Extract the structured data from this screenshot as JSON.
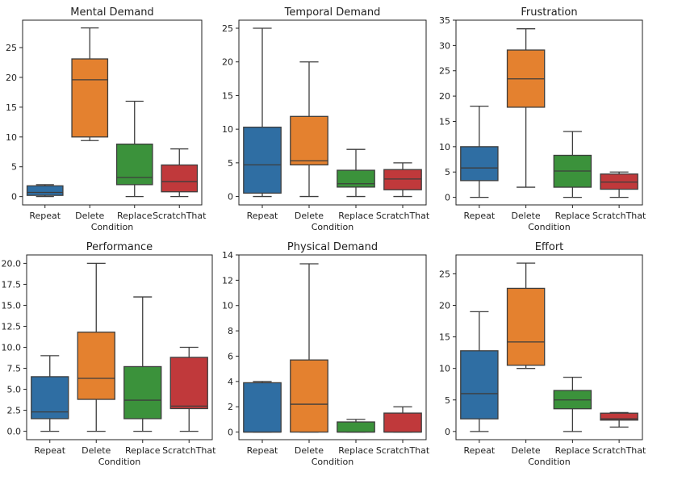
{
  "chart_data": [
    {
      "type": "box",
      "title": "Mental Demand",
      "xlabel": "Condition",
      "ylabel": "",
      "ylim": [
        -1.4,
        29.6
      ],
      "yticks": [
        0,
        5,
        10,
        15,
        20,
        25
      ],
      "categories": [
        "Repeat",
        "Delete",
        "Replace",
        "ScratchThat"
      ],
      "boxes": [
        {
          "whislo": 0,
          "q1": 0.2,
          "med": 0.7,
          "q3": 1.8,
          "whishi": 2.0,
          "color": "#2f6ea3"
        },
        {
          "whislo": 9.4,
          "q1": 10.0,
          "med": 19.6,
          "q3": 23.1,
          "whishi": 28.3,
          "color": "#e4812f"
        },
        {
          "whislo": 0,
          "q1": 2.0,
          "med": 3.2,
          "q3": 8.8,
          "whishi": 16.0,
          "color": "#3b923b"
        },
        {
          "whislo": 0,
          "q1": 0.8,
          "med": 2.5,
          "q3": 5.3,
          "whishi": 8.0,
          "color": "#c0393b"
        }
      ]
    },
    {
      "type": "box",
      "title": "Temporal Demand",
      "xlabel": "Condition",
      "ylabel": "",
      "ylim": [
        -1.25,
        26.2
      ],
      "yticks": [
        0,
        5,
        10,
        15,
        20,
        25
      ],
      "categories": [
        "Repeat",
        "Delete",
        "Replace",
        "ScratchThat"
      ],
      "boxes": [
        {
          "whislo": 0,
          "q1": 0.5,
          "med": 4.7,
          "q3": 10.3,
          "whishi": 25.0,
          "color": "#2f6ea3"
        },
        {
          "whislo": 0,
          "q1": 4.7,
          "med": 5.3,
          "q3": 11.9,
          "whishi": 20.0,
          "color": "#e4812f"
        },
        {
          "whislo": 0,
          "q1": 1.4,
          "med": 1.9,
          "q3": 3.9,
          "whishi": 7.0,
          "color": "#3b923b"
        },
        {
          "whislo": 0,
          "q1": 1.0,
          "med": 2.6,
          "q3": 4.0,
          "whishi": 5.0,
          "color": "#c0393b"
        }
      ]
    },
    {
      "type": "box",
      "title": "Frustration",
      "xlabel": "Condition",
      "ylabel": "",
      "ylim": [
        -1.5,
        35.0
      ],
      "yticks": [
        0,
        5,
        10,
        15,
        20,
        25,
        30,
        35
      ],
      "categories": [
        "Repeat",
        "Delete",
        "Replace",
        "ScratchThat"
      ],
      "boxes": [
        {
          "whislo": 0,
          "q1": 3.3,
          "med": 5.8,
          "q3": 10.0,
          "whishi": 18.0,
          "color": "#2f6ea3"
        },
        {
          "whislo": 2.0,
          "q1": 17.8,
          "med": 23.4,
          "q3": 29.1,
          "whishi": 33.3,
          "color": "#e4812f"
        },
        {
          "whislo": 0,
          "q1": 2.0,
          "med": 5.2,
          "q3": 8.3,
          "whishi": 13.0,
          "color": "#3b923b"
        },
        {
          "whislo": 0,
          "q1": 1.6,
          "med": 3.0,
          "q3": 4.6,
          "whishi": 5.0,
          "color": "#c0393b"
        }
      ]
    },
    {
      "type": "box",
      "title": "Performance",
      "xlabel": "Condition",
      "ylabel": "",
      "ylim": [
        -1.0,
        21.0
      ],
      "yticks": [
        0.0,
        2.5,
        5.0,
        7.5,
        10.0,
        12.5,
        15.0,
        17.5,
        20.0
      ],
      "ytick_labels": [
        "0.0",
        "2.5",
        "5.0",
        "7.5",
        "10.0",
        "12.5",
        "15.0",
        "17.5",
        "20.0"
      ],
      "categories": [
        "Repeat",
        "Delete",
        "Replace",
        "ScratchThat"
      ],
      "boxes": [
        {
          "whislo": 0,
          "q1": 1.5,
          "med": 2.3,
          "q3": 6.5,
          "whishi": 9.0,
          "color": "#2f6ea3"
        },
        {
          "whislo": 0,
          "q1": 3.8,
          "med": 6.3,
          "q3": 11.8,
          "whishi": 20.0,
          "color": "#e4812f"
        },
        {
          "whislo": 0,
          "q1": 1.5,
          "med": 3.7,
          "q3": 7.7,
          "whishi": 16.0,
          "color": "#3b923b"
        },
        {
          "whislo": 0,
          "q1": 2.7,
          "med": 3.0,
          "q3": 8.8,
          "whishi": 10.0,
          "color": "#c0393b"
        }
      ]
    },
    {
      "type": "box",
      "title": "Physical Demand",
      "xlabel": "Condition",
      "ylabel": "",
      "ylim": [
        -0.6,
        14.0
      ],
      "yticks": [
        0,
        2,
        4,
        6,
        8,
        10,
        12,
        14
      ],
      "categories": [
        "Repeat",
        "Delete",
        "Replace",
        "ScratchThat"
      ],
      "boxes": [
        {
          "whislo": 0,
          "q1": 0,
          "med": 0,
          "q3": 3.9,
          "whishi": 4.0,
          "color": "#2f6ea3"
        },
        {
          "whislo": 0,
          "q1": 0,
          "med": 2.2,
          "q3": 5.7,
          "whishi": 13.3,
          "color": "#e4812f"
        },
        {
          "whislo": 0,
          "q1": 0,
          "med": 0,
          "q3": 0.8,
          "whishi": 1.0,
          "color": "#3b923b"
        },
        {
          "whislo": 0,
          "q1": 0,
          "med": 0,
          "q3": 1.5,
          "whishi": 2.0,
          "color": "#c0393b"
        }
      ]
    },
    {
      "type": "box",
      "title": "Effort",
      "xlabel": "Condition",
      "ylabel": "",
      "ylim": [
        -1.3,
        28.0
      ],
      "yticks": [
        0,
        5,
        10,
        15,
        20,
        25
      ],
      "categories": [
        "Repeat",
        "Delete",
        "Replace",
        "ScratchThat"
      ],
      "boxes": [
        {
          "whislo": 0,
          "q1": 2.0,
          "med": 6.0,
          "q3": 12.8,
          "whishi": 19.0,
          "color": "#2f6ea3"
        },
        {
          "whislo": 10.0,
          "q1": 10.5,
          "med": 14.2,
          "q3": 22.7,
          "whishi": 26.7,
          "color": "#e4812f"
        },
        {
          "whislo": 0,
          "q1": 3.6,
          "med": 5.0,
          "q3": 6.5,
          "whishi": 8.6,
          "color": "#3b923b"
        },
        {
          "whislo": 0.7,
          "q1": 1.8,
          "med": 2.0,
          "q3": 2.9,
          "whishi": 3.0,
          "color": "#c0393b"
        }
      ]
    }
  ]
}
